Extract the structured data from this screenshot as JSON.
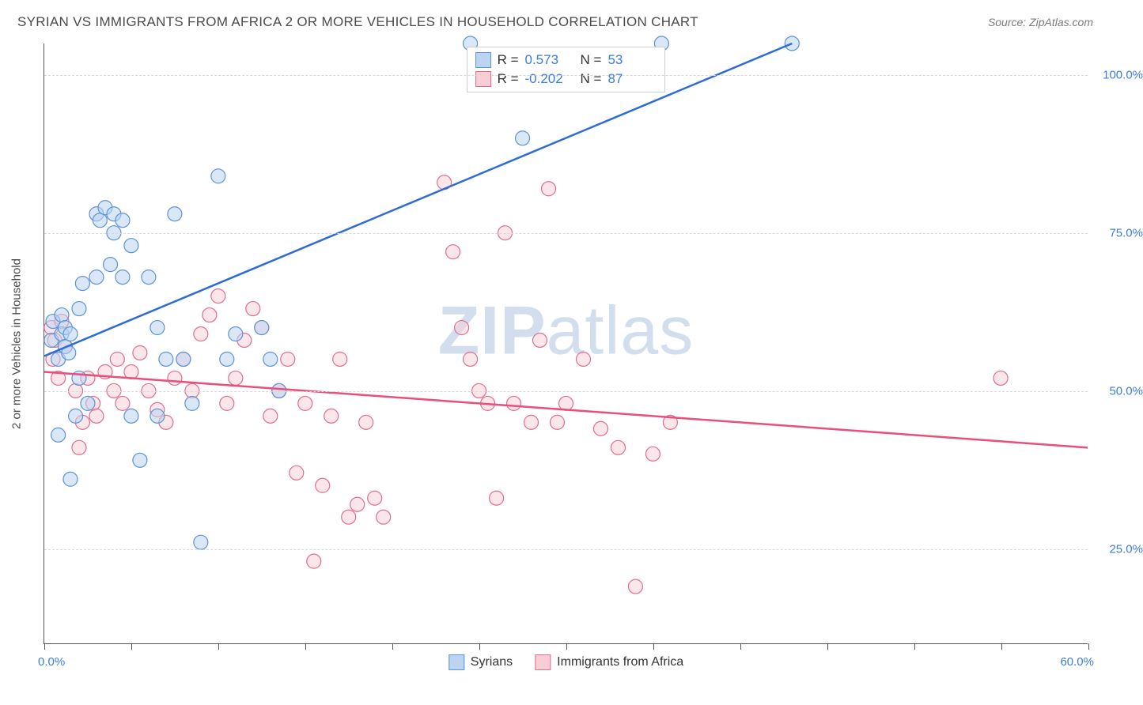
{
  "title": "SYRIAN VS IMMIGRANTS FROM AFRICA 2 OR MORE VEHICLES IN HOUSEHOLD CORRELATION CHART",
  "source": "Source: ZipAtlas.com",
  "ylabel": "2 or more Vehicles in Household",
  "watermark_a": "ZIP",
  "watermark_b": "atlas",
  "xaxis": {
    "min": 0,
    "max": 60,
    "start_label": "0.0%",
    "end_label": "60.0%",
    "ticks": [
      0,
      5,
      10,
      15,
      20,
      25,
      30,
      35,
      40,
      45,
      50,
      55,
      60
    ]
  },
  "yaxis": {
    "min": 10,
    "max": 105,
    "ticks": [
      25,
      50,
      75,
      100
    ],
    "tick_labels": [
      "25.0%",
      "50.0%",
      "75.0%",
      "100.0%"
    ]
  },
  "grid_color": "#d8d8d8",
  "background_color": "#ffffff",
  "marker_radius": 9,
  "series": [
    {
      "name": "Syrians",
      "legend_label": "Syrians",
      "fill": "#bcd4f0",
      "stroke": "#5a93d8",
      "fill_opacity": 0.55,
      "line_color": "#2e6bd6",
      "line_width": 2.5,
      "trend": {
        "x1": 0,
        "y1": 55.5,
        "x2": 43,
        "y2": 105
      },
      "stats": {
        "R": "0.573",
        "N": "53"
      },
      "points": [
        [
          0.4,
          58
        ],
        [
          0.5,
          61
        ],
        [
          0.8,
          55
        ],
        [
          1.0,
          59
        ],
        [
          1.0,
          62
        ],
        [
          1.2,
          57
        ],
        [
          1.2,
          60
        ],
        [
          1.4,
          56
        ],
        [
          1.5,
          59
        ],
        [
          2.0,
          63
        ],
        [
          0.8,
          43
        ],
        [
          1.5,
          36
        ],
        [
          1.8,
          46
        ],
        [
          2.0,
          52
        ],
        [
          2.2,
          67
        ],
        [
          2.5,
          48
        ],
        [
          3.0,
          78
        ],
        [
          3.0,
          68
        ],
        [
          3.2,
          77
        ],
        [
          3.5,
          79
        ],
        [
          3.8,
          70
        ],
        [
          4.0,
          75
        ],
        [
          4.0,
          78
        ],
        [
          4.5,
          77
        ],
        [
          4.5,
          68
        ],
        [
          5.0,
          73
        ],
        [
          5.0,
          46
        ],
        [
          5.5,
          39
        ],
        [
          6.0,
          68
        ],
        [
          6.5,
          60
        ],
        [
          6.5,
          46
        ],
        [
          7.0,
          55
        ],
        [
          7.5,
          78
        ],
        [
          8.0,
          55
        ],
        [
          8.5,
          48
        ],
        [
          9.0,
          26
        ],
        [
          10.0,
          84
        ],
        [
          10.5,
          55
        ],
        [
          11.0,
          59
        ],
        [
          12.5,
          60
        ],
        [
          13.0,
          55
        ],
        [
          13.5,
          50
        ],
        [
          24.5,
          105
        ],
        [
          27.5,
          90
        ],
        [
          35.5,
          105
        ],
        [
          43.0,
          105
        ]
      ]
    },
    {
      "name": "Immigrants from Africa",
      "legend_label": "Immigrants from Africa",
      "fill": "#f7cdd6",
      "stroke": "#e16d8e",
      "fill_opacity": 0.5,
      "line_color": "#e94f7a",
      "line_width": 2.5,
      "trend": {
        "x1": 0,
        "y1": 53,
        "x2": 60,
        "y2": 41
      },
      "stats": {
        "R": "-0.202",
        "N": "87"
      },
      "points": [
        [
          0.4,
          60
        ],
        [
          0.5,
          55
        ],
        [
          0.6,
          58
        ],
        [
          0.8,
          52
        ],
        [
          1.0,
          61
        ],
        [
          1.2,
          57
        ],
        [
          1.8,
          50
        ],
        [
          2.0,
          41
        ],
        [
          2.2,
          45
        ],
        [
          2.5,
          52
        ],
        [
          2.8,
          48
        ],
        [
          3.0,
          46
        ],
        [
          3.5,
          53
        ],
        [
          4.0,
          50
        ],
        [
          4.2,
          55
        ],
        [
          4.5,
          48
        ],
        [
          5.0,
          53
        ],
        [
          5.5,
          56
        ],
        [
          6.0,
          50
        ],
        [
          6.5,
          47
        ],
        [
          7.0,
          45
        ],
        [
          7.5,
          52
        ],
        [
          8.0,
          55
        ],
        [
          8.5,
          50
        ],
        [
          9.0,
          59
        ],
        [
          9.5,
          62
        ],
        [
          10.0,
          65
        ],
        [
          10.5,
          48
        ],
        [
          11.0,
          52
        ],
        [
          11.5,
          58
        ],
        [
          12.0,
          63
        ],
        [
          12.5,
          60
        ],
        [
          13.0,
          46
        ],
        [
          13.5,
          50
        ],
        [
          14.0,
          55
        ],
        [
          14.5,
          37
        ],
        [
          15.0,
          48
        ],
        [
          15.5,
          23
        ],
        [
          16.0,
          35
        ],
        [
          16.5,
          46
        ],
        [
          17.0,
          55
        ],
        [
          17.5,
          30
        ],
        [
          18.0,
          32
        ],
        [
          18.5,
          45
        ],
        [
          19.0,
          33
        ],
        [
          19.5,
          30
        ],
        [
          23.0,
          83
        ],
        [
          23.5,
          72
        ],
        [
          24.0,
          60
        ],
        [
          24.5,
          55
        ],
        [
          25.0,
          50
        ],
        [
          25.5,
          48
        ],
        [
          26.0,
          33
        ],
        [
          26.5,
          75
        ],
        [
          27.0,
          48
        ],
        [
          28.0,
          45
        ],
        [
          28.5,
          58
        ],
        [
          29.0,
          82
        ],
        [
          29.5,
          45
        ],
        [
          30.0,
          48
        ],
        [
          31.0,
          55
        ],
        [
          32.0,
          44
        ],
        [
          33.0,
          41
        ],
        [
          34.0,
          19
        ],
        [
          35.0,
          40
        ],
        [
          36.0,
          45
        ],
        [
          55.0,
          52
        ]
      ]
    }
  ],
  "stats_labels": {
    "R": "R =",
    "N": "N ="
  }
}
